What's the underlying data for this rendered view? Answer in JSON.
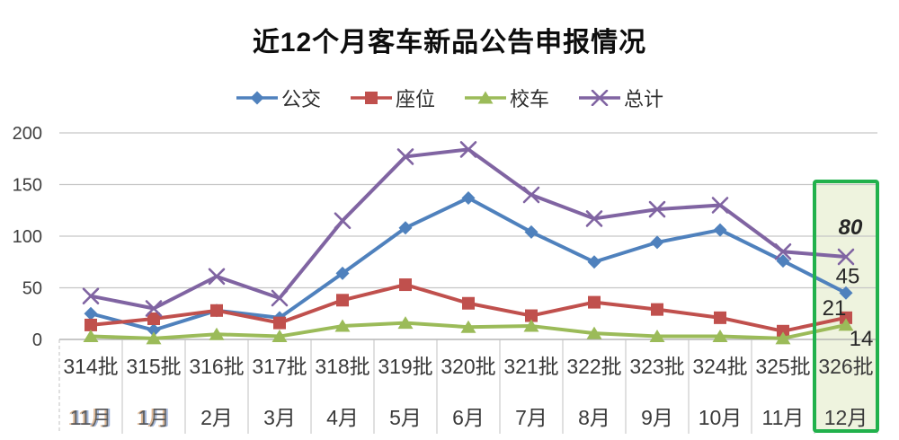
{
  "chart_data": {
    "type": "line",
    "title": "近12个月客车新品公告申报情况",
    "categories": [
      "314批",
      "315批",
      "316批",
      "317批",
      "318批",
      "319批",
      "320批",
      "321批",
      "322批",
      "323批",
      "324批",
      "325批",
      "326批"
    ],
    "month_labels": [
      "11月",
      "1月",
      "2月",
      "3月",
      "4月",
      "5月",
      "6月",
      "7月",
      "8月",
      "9月",
      "10月",
      "11月",
      "12月"
    ],
    "ylim": [
      0,
      200
    ],
    "yticks": [
      0,
      50,
      100,
      150,
      200
    ],
    "grid": true,
    "legend_position": "top",
    "series": [
      {
        "key": "bus",
        "name": "公交",
        "color": "#4F81BD",
        "marker": "diamond",
        "values": [
          25,
          9,
          28,
          21,
          64,
          108,
          137,
          104,
          75,
          94,
          106,
          76,
          45
        ]
      },
      {
        "key": "seat",
        "name": "座位",
        "color": "#C0504D",
        "marker": "square",
        "values": [
          14,
          20,
          28,
          16,
          38,
          53,
          35,
          23,
          36,
          29,
          21,
          8,
          21
        ]
      },
      {
        "key": "school",
        "name": "校车",
        "color": "#9BBB59",
        "marker": "triangle",
        "values": [
          3,
          1,
          5,
          3,
          13,
          16,
          12,
          13,
          6,
          3,
          3,
          1,
          14
        ]
      },
      {
        "key": "total",
        "name": "总计",
        "color": "#8064A2",
        "marker": "x",
        "values": [
          42,
          30,
          61,
          40,
          115,
          177,
          184,
          140,
          117,
          126,
          130,
          85,
          80
        ]
      }
    ],
    "highlight": {
      "column": "326批",
      "border_color": "#21B14C",
      "fill_color": "#EDF2DC",
      "labels": [
        {
          "series": "total",
          "text": "80",
          "emphasis": true
        },
        {
          "series": "bus",
          "text": "45"
        },
        {
          "series": "seat",
          "text": "21"
        },
        {
          "series": "school",
          "text": "14"
        }
      ]
    }
  }
}
